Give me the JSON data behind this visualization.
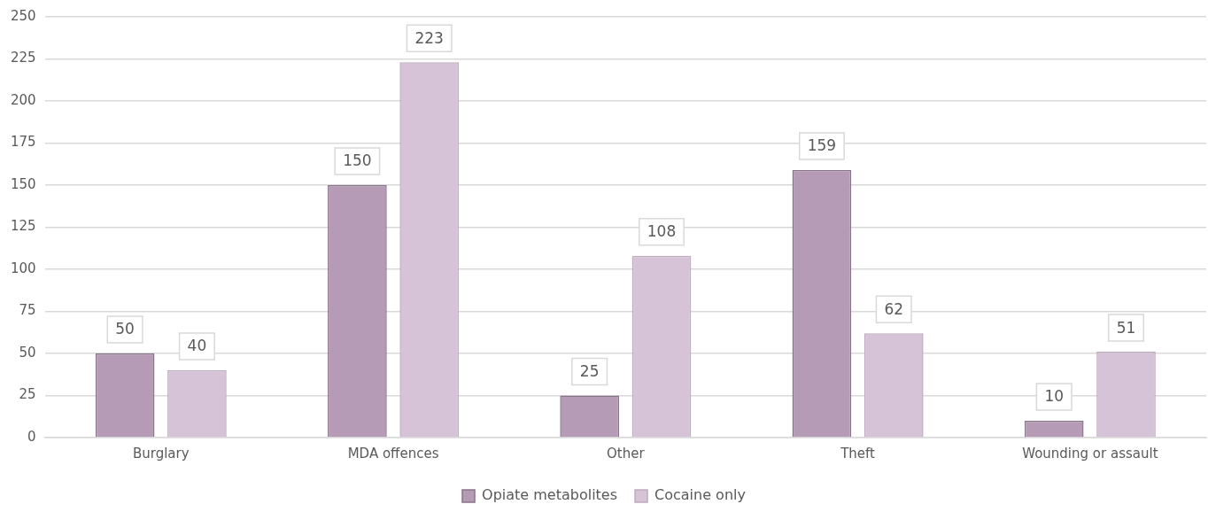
{
  "chart_data": {
    "type": "bar",
    "categories": [
      "Burglary",
      "MDA offences",
      "Other",
      "Theft",
      "Wounding or assault"
    ],
    "series": [
      {
        "name": "Opiate metabolites",
        "color": "#b59bb5",
        "values": [
          50,
          150,
          25,
          159,
          10
        ]
      },
      {
        "name": "Cocaine only",
        "color": "#d7c3d7",
        "values": [
          40,
          223,
          108,
          62,
          51
        ]
      }
    ],
    "ylim": [
      0,
      250
    ],
    "yticks": [
      0,
      25,
      50,
      75,
      100,
      125,
      150,
      175,
      200,
      225,
      250
    ],
    "grid": "y",
    "legend": "bottom",
    "data_labels": true
  }
}
